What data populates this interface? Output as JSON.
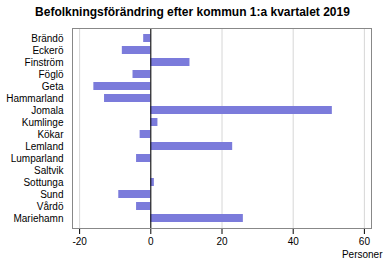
{
  "chart_data": {
    "type": "bar",
    "orientation": "horizontal",
    "title": "Befolkningsförändring efter kommun 1:a kvartalet 2019",
    "categories": [
      "Brändö",
      "Eckerö",
      "Finström",
      "Föglö",
      "Geta",
      "Hammarland",
      "Jomala",
      "Kumlinge",
      "Kökar",
      "Lemland",
      "Lumparland",
      "Saltvik",
      "Sottunga",
      "Sund",
      "Vårdö",
      "Mariehamn"
    ],
    "values": [
      -2,
      -8,
      11,
      -5,
      -16,
      -13,
      51,
      2,
      -3,
      23,
      -4,
      0,
      1,
      -9,
      -4,
      26
    ],
    "color": "#7b7bdb",
    "xlabel": "Personer",
    "xlim": [
      -22,
      62
    ],
    "xticks": [
      -20,
      0,
      20,
      40,
      60
    ],
    "grid": true
  }
}
